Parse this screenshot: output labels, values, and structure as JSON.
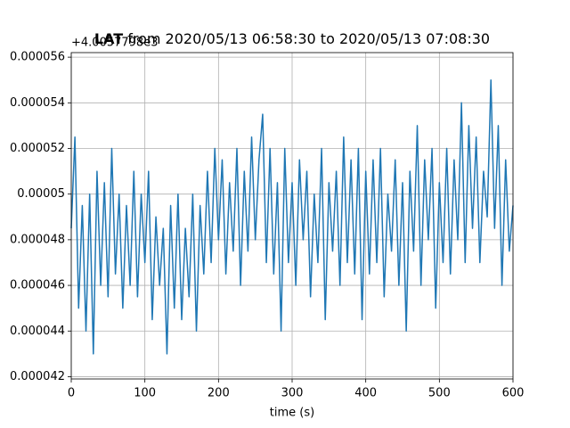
{
  "chart_data": {
    "type": "line",
    "title_bold": "LAT",
    "title": "from 2020/05/13 06:58:30 to 2020/05/13 07:08:30",
    "offset_label": "+4.0057798e3",
    "x_label": "time (s)",
    "xlim": [
      0,
      600
    ],
    "xticks": [
      0,
      100,
      200,
      300,
      400,
      500,
      600
    ],
    "ylim": [
      4.19e-05,
      5.62e-05
    ],
    "yticks": [
      4.2e-05,
      4.4e-05,
      4.6e-05,
      4.8e-05,
      5e-05,
      5.2e-05,
      5.4e-05,
      5.6e-05
    ],
    "grid": true,
    "color": "#1f77b4",
    "x": [
      0,
      5,
      10,
      15,
      20,
      25,
      30,
      35,
      40,
      45,
      50,
      55,
      60,
      65,
      70,
      75,
      80,
      85,
      90,
      95,
      100,
      105,
      110,
      115,
      120,
      125,
      130,
      135,
      140,
      145,
      150,
      155,
      160,
      165,
      170,
      175,
      180,
      185,
      190,
      195,
      200,
      205,
      210,
      215,
      220,
      225,
      230,
      235,
      240,
      245,
      250,
      255,
      260,
      265,
      270,
      275,
      280,
      285,
      290,
      295,
      300,
      305,
      310,
      315,
      320,
      325,
      330,
      335,
      340,
      345,
      350,
      355,
      360,
      365,
      370,
      375,
      380,
      385,
      390,
      395,
      400,
      405,
      410,
      415,
      420,
      425,
      430,
      435,
      440,
      445,
      450,
      455,
      460,
      465,
      470,
      475,
      480,
      485,
      490,
      495,
      500,
      505,
      510,
      515,
      520,
      525,
      530,
      535,
      540,
      545,
      550,
      555,
      560,
      565,
      570,
      575,
      580,
      585,
      590,
      595,
      600
    ],
    "values": [
      4.85e-05,
      5.25e-05,
      4.5e-05,
      4.95e-05,
      4.4e-05,
      5e-05,
      4.3e-05,
      5.1e-05,
      4.6e-05,
      5.05e-05,
      4.55e-05,
      5.2e-05,
      4.65e-05,
      5e-05,
      4.5e-05,
      4.95e-05,
      4.6e-05,
      5.1e-05,
      4.55e-05,
      5e-05,
      4.7e-05,
      5.1e-05,
      4.45e-05,
      4.9e-05,
      4.6e-05,
      4.85e-05,
      4.3e-05,
      4.95e-05,
      4.5e-05,
      5e-05,
      4.45e-05,
      4.85e-05,
      4.55e-05,
      5e-05,
      4.4e-05,
      4.95e-05,
      4.65e-05,
      5.1e-05,
      4.7e-05,
      5.2e-05,
      4.8e-05,
      5.15e-05,
      4.65e-05,
      5.05e-05,
      4.75e-05,
      5.2e-05,
      4.6e-05,
      5.1e-05,
      4.75e-05,
      5.25e-05,
      4.8e-05,
      5.15e-05,
      5.35e-05,
      4.7e-05,
      5.2e-05,
      4.65e-05,
      5.05e-05,
      4.4e-05,
      5.2e-05,
      4.7e-05,
      5.05e-05,
      4.6e-05,
      5.15e-05,
      4.8e-05,
      5.1e-05,
      4.55e-05,
      5e-05,
      4.7e-05,
      5.2e-05,
      4.45e-05,
      5.05e-05,
      4.75e-05,
      5.1e-05,
      4.6e-05,
      5.25e-05,
      4.7e-05,
      5.15e-05,
      4.65e-05,
      5.2e-05,
      4.45e-05,
      5.1e-05,
      4.65e-05,
      5.15e-05,
      4.7e-05,
      5.2e-05,
      4.55e-05,
      5e-05,
      4.75e-05,
      5.15e-05,
      4.6e-05,
      5.05e-05,
      4.4e-05,
      5.1e-05,
      4.75e-05,
      5.3e-05,
      4.6e-05,
      5.15e-05,
      4.8e-05,
      5.2e-05,
      4.5e-05,
      5.05e-05,
      4.7e-05,
      5.2e-05,
      4.65e-05,
      5.15e-05,
      4.8e-05,
      5.4e-05,
      4.7e-05,
      5.3e-05,
      4.85e-05,
      5.25e-05,
      4.7e-05,
      5.1e-05,
      4.9e-05,
      5.5e-05,
      4.85e-05,
      5.3e-05,
      4.6e-05,
      5.15e-05,
      4.75e-05,
      4.95e-05
    ]
  }
}
